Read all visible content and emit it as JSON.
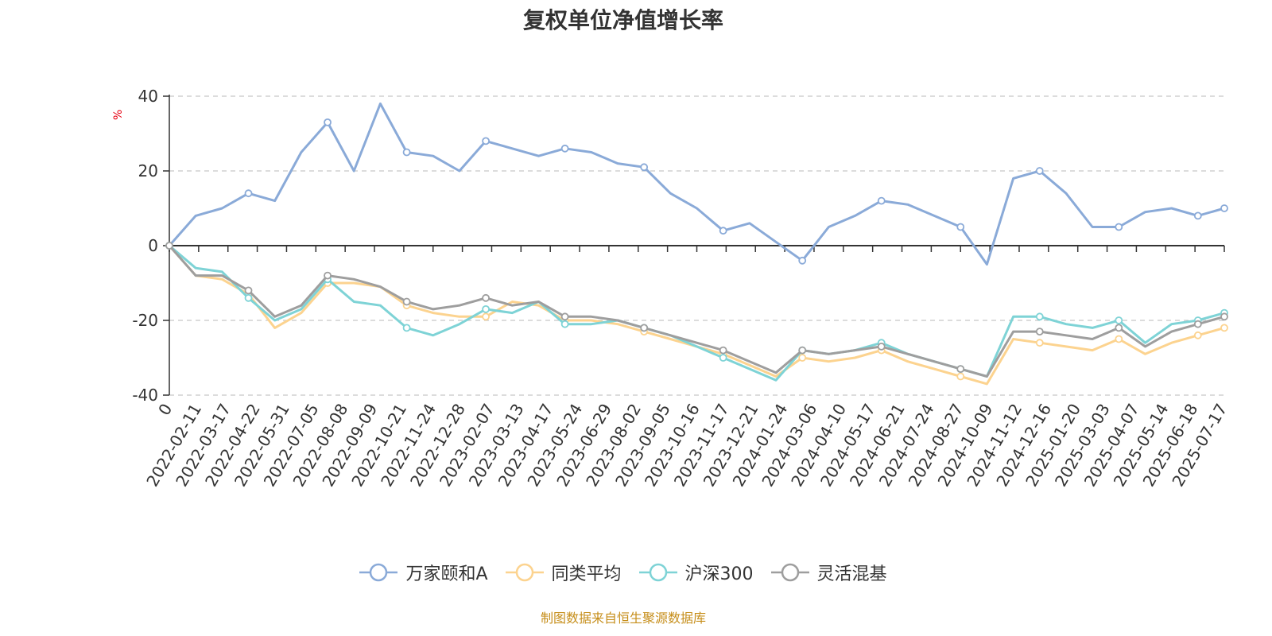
{
  "chart_data": {
    "type": "line",
    "title": "复权单位净值增长率",
    "ylabel": "%",
    "ylim": [
      -40,
      40
    ],
    "yticks": [
      40,
      20,
      0,
      -20,
      -40
    ],
    "grid": true,
    "legend_position": "bottom",
    "x_ticks": [
      "0",
      "2022-02-11",
      "2022-03-17",
      "2022-04-22",
      "2022-05-31",
      "2022-07-05",
      "2022-08-08",
      "2022-09-09",
      "2022-10-21",
      "2022-11-24",
      "2022-12-28",
      "2023-02-07",
      "2023-03-13",
      "2023-04-17",
      "2023-05-24",
      "2023-06-29",
      "2023-08-02",
      "2023-09-05",
      "2023-10-16",
      "2023-11-17",
      "2023-12-21",
      "2024-01-24",
      "2024-03-06",
      "2024-04-10",
      "2024-05-17",
      "2024-06-21",
      "2024-07-24",
      "2024-08-27",
      "2024-10-09",
      "2024-11-12",
      "2024-12-16",
      "2025-01-20",
      "2025-03-03",
      "2025-04-07",
      "2025-05-14",
      "2025-06-18",
      "2025-07-17"
    ],
    "series": [
      {
        "name": "万家颐和A",
        "color": "#8aaad8",
        "values": [
          0,
          8,
          10,
          14,
          12,
          25,
          33,
          20,
          38,
          25,
          24,
          20,
          28,
          26,
          24,
          26,
          25,
          22,
          21,
          14,
          10,
          4,
          6,
          1,
          -4,
          5,
          8,
          12,
          11,
          8,
          5,
          -5,
          18,
          20,
          14,
          5,
          5,
          9,
          10,
          8,
          10
        ]
      },
      {
        "name": "同类平均",
        "color": "#fcd38f",
        "values": [
          0,
          -8,
          -9,
          -13,
          -22,
          -18,
          -10,
          -10,
          -11,
          -16,
          -18,
          -19,
          -19,
          -15,
          -16,
          -20,
          -20,
          -21,
          -23,
          -25,
          -27,
          -29,
          -32,
          -35,
          -30,
          -31,
          -30,
          -28,
          -31,
          -33,
          -35,
          -37,
          -25,
          -26,
          -27,
          -28,
          -25,
          -29,
          -26,
          -24,
          -22
        ]
      },
      {
        "name": "沪深300",
        "color": "#7ed3d6",
        "values": [
          0,
          -6,
          -7,
          -14,
          -20,
          -17,
          -9,
          -15,
          -16,
          -22,
          -24,
          -21,
          -17,
          -18,
          -15,
          -21,
          -21,
          -20,
          -22,
          -24,
          -27,
          -30,
          -33,
          -36,
          -28,
          -29,
          -28,
          -26,
          -29,
          -31,
          -33,
          -35,
          -19,
          -19,
          -21,
          -22,
          -20,
          -26,
          -21,
          -20,
          -18
        ]
      },
      {
        "name": "灵活混基",
        "color": "#9e9e9e",
        "values": [
          0,
          -8,
          -8,
          -12,
          -19,
          -16,
          -8,
          -9,
          -11,
          -15,
          -17,
          -16,
          -14,
          -16,
          -15,
          -19,
          -19,
          -20,
          -22,
          -24,
          -26,
          -28,
          -31,
          -34,
          -28,
          -29,
          -28,
          -27,
          -29,
          -31,
          -33,
          -35,
          -23,
          -23,
          -24,
          -25,
          -22,
          -27,
          -23,
          -21,
          -19
        ]
      }
    ]
  },
  "footer": "制图数据来自恒生聚源数据库"
}
